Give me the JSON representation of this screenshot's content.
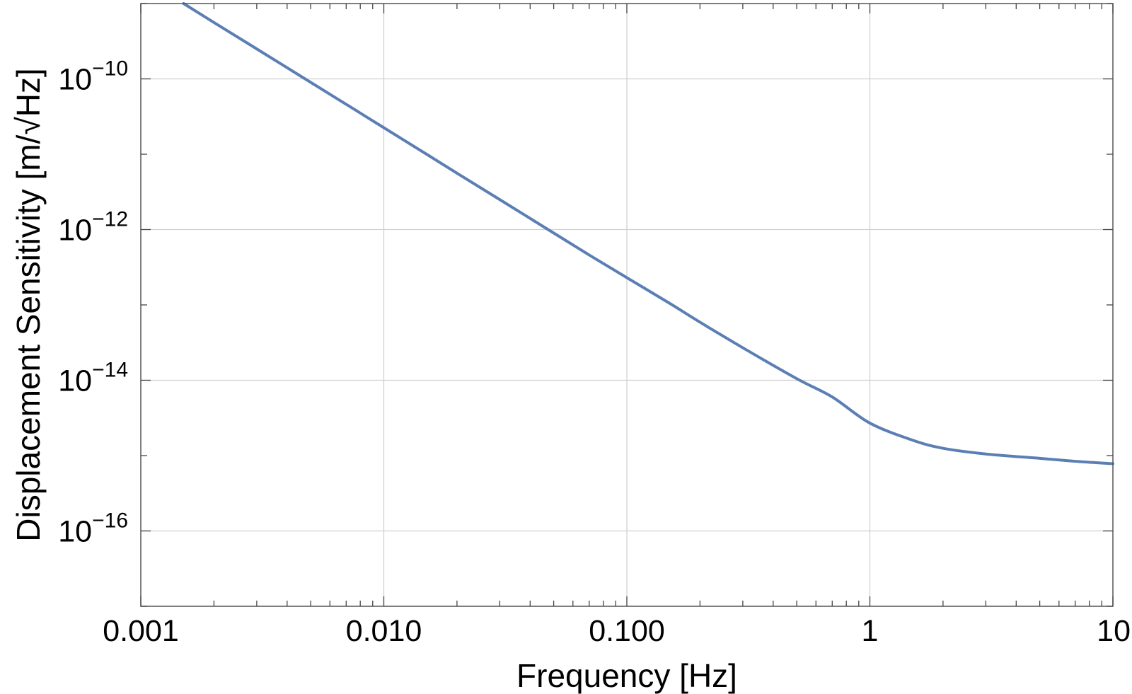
{
  "chart_data": {
    "type": "line",
    "xlabel": "Frequency [Hz]",
    "ylabel": "Displacement Sensitivity [m/√Hz]",
    "x_scale": "log",
    "y_scale": "log",
    "xlim": [
      0.001,
      10
    ],
    "ylim": [
      1e-17,
      1e-09
    ],
    "x_ticks": [
      {
        "value": 0.001,
        "label": "0.001"
      },
      {
        "value": 0.01,
        "label": "0.010"
      },
      {
        "value": 0.1,
        "label": "0.100"
      },
      {
        "value": 1,
        "label": "1"
      },
      {
        "value": 10,
        "label": "10"
      }
    ],
    "y_ticks": [
      {
        "value": 1e-10,
        "base": "10",
        "exp": "−10"
      },
      {
        "value": 1e-12,
        "base": "10",
        "exp": "−12"
      },
      {
        "value": 1e-14,
        "base": "10",
        "exp": "−14"
      },
      {
        "value": 1e-16,
        "base": "10",
        "exp": "−16"
      }
    ],
    "grid": true,
    "series": [
      {
        "color": "#5b7fb5",
        "x": [
          0.0015,
          0.002,
          0.003,
          0.005,
          0.007,
          0.01,
          0.015,
          0.02,
          0.03,
          0.05,
          0.07,
          0.1,
          0.15,
          0.2,
          0.3,
          0.5,
          0.7,
          1,
          1.5,
          2,
          3,
          5,
          7,
          10
        ],
        "y": [
          1e-09,
          5.6e-10,
          2.5e-10,
          9e-11,
          4.6e-11,
          2.25e-11,
          1e-11,
          5.6e-12,
          2.5e-12,
          9e-13,
          4.6e-13,
          2.3e-13,
          1.05e-13,
          5.9e-14,
          2.7e-14,
          1.05e-14,
          6e-15,
          2.7e-15,
          1.6e-15,
          1.25e-15,
          1.05e-15,
          9.2e-16,
          8.4e-16,
          7.8e-16
        ]
      }
    ]
  }
}
